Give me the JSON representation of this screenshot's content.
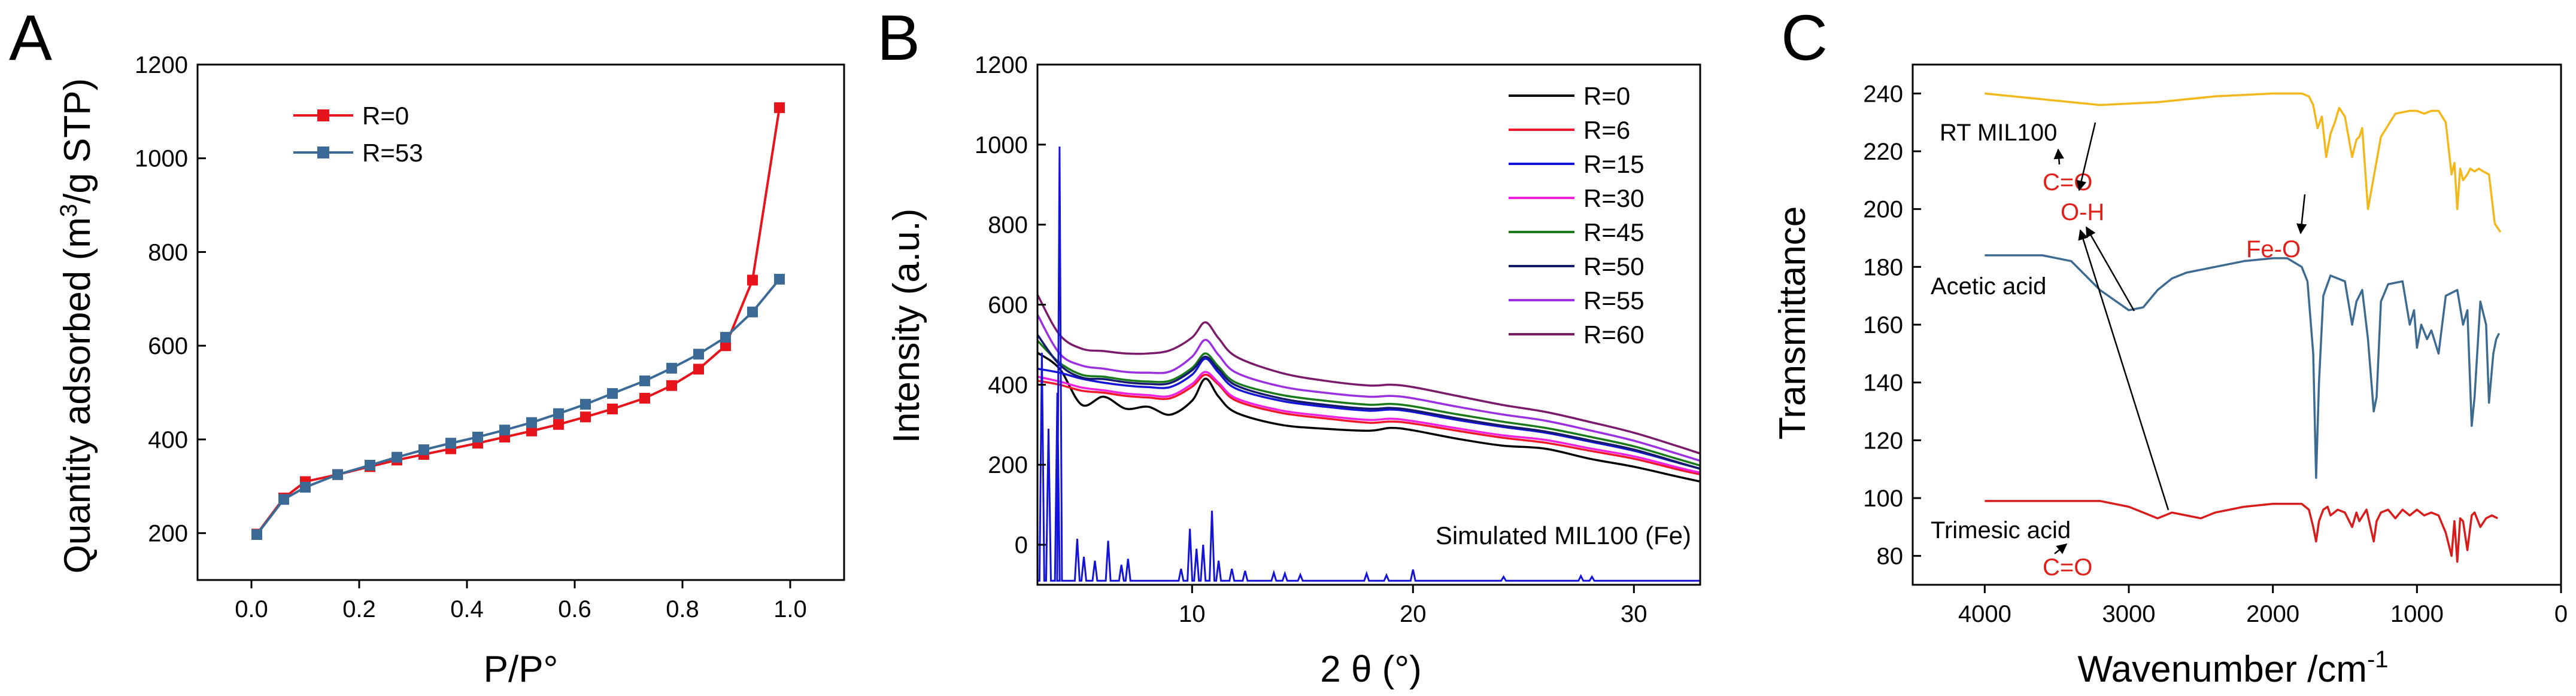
{
  "chart_data": [
    {
      "panel": "A",
      "type": "line",
      "title": "",
      "xlabel": "P/P°",
      "ylabel_main": "Quantity adsorbed (m",
      "ylabel_sup": "3",
      "ylabel_end": "/g STP)",
      "xlim": [
        -0.1,
        1.1
      ],
      "ylim": [
        100,
        1200
      ],
      "xticks": [
        0.0,
        0.2,
        0.4,
        0.6,
        0.8,
        1.0
      ],
      "xtick_labels": [
        "0.0",
        "0.2",
        "0.4",
        "0.6",
        "0.8",
        "1.0"
      ],
      "yticks": [
        200,
        400,
        600,
        800,
        1000,
        1200
      ],
      "ytick_labels": [
        "200",
        "400",
        "600",
        "800",
        "1000",
        "1200"
      ],
      "legend_position": "top-left",
      "series": [
        {
          "name": "R=0",
          "color": "#e8141c",
          "marker": "square",
          "x": [
            0.01,
            0.06,
            0.1,
            0.16,
            0.22,
            0.27,
            0.32,
            0.37,
            0.42,
            0.47,
            0.52,
            0.57,
            0.62,
            0.67,
            0.73,
            0.78,
            0.83,
            0.88,
            0.93,
            0.98
          ],
          "y": [
            198,
            275,
            310,
            325,
            342,
            356,
            368,
            380,
            392,
            405,
            418,
            432,
            448,
            465,
            488,
            515,
            550,
            600,
            740,
            1108
          ]
        },
        {
          "name": "R=53",
          "color": "#3c6a96",
          "marker": "square",
          "x": [
            0.01,
            0.06,
            0.1,
            0.16,
            0.22,
            0.27,
            0.32,
            0.37,
            0.42,
            0.47,
            0.52,
            0.57,
            0.62,
            0.67,
            0.73,
            0.78,
            0.83,
            0.88,
            0.93,
            0.98
          ],
          "y": [
            197,
            272,
            298,
            325,
            345,
            362,
            378,
            392,
            405,
            420,
            436,
            455,
            475,
            498,
            525,
            552,
            582,
            618,
            672,
            742
          ]
        }
      ]
    },
    {
      "panel": "B",
      "type": "line",
      "title": "",
      "xlabel": "2 θ (°)",
      "ylabel": "Intensity (a.u.)",
      "xlim": [
        3,
        33
      ],
      "ylim": [
        -100,
        1200
      ],
      "xticks": [
        10,
        20,
        30
      ],
      "xtick_labels": [
        "10",
        "20",
        "30"
      ],
      "yticks": [
        0,
        200,
        400,
        600,
        800,
        1000,
        1200
      ],
      "ytick_labels": [
        "0",
        "200",
        "400",
        "600",
        "800",
        "1000",
        "1200"
      ],
      "legend_position": "top-right",
      "series": [
        {
          "name": "R=0",
          "color": "#000000",
          "x": [
            3,
            4,
            5,
            6,
            7,
            8,
            9,
            10,
            10.6,
            11.2,
            12,
            14,
            16,
            18,
            19,
            20,
            22,
            24,
            26,
            28,
            30,
            32,
            33
          ],
          "y": [
            480,
            440,
            350,
            370,
            340,
            345,
            325,
            360,
            415,
            370,
            330,
            300,
            290,
            285,
            292,
            286,
            265,
            248,
            240,
            215,
            195,
            170,
            158
          ]
        },
        {
          "name": "R=6",
          "color": "#f2182c",
          "x": [
            3,
            4,
            5,
            6,
            7,
            8,
            9,
            10,
            10.6,
            11.2,
            12,
            14,
            16,
            18,
            19,
            20,
            22,
            24,
            26,
            28,
            30,
            32,
            33
          ],
          "y": [
            410,
            400,
            385,
            380,
            372,
            368,
            366,
            395,
            425,
            400,
            360,
            330,
            316,
            305,
            308,
            303,
            285,
            268,
            255,
            235,
            215,
            188,
            176
          ]
        },
        {
          "name": "R=15",
          "color": "#1414d8",
          "x": [
            3,
            4,
            5,
            6,
            7,
            8,
            9,
            10,
            10.6,
            11.2,
            12,
            14,
            16,
            18,
            19,
            20,
            22,
            24,
            26,
            28,
            30,
            32,
            33
          ],
          "y": [
            440,
            430,
            415,
            405,
            398,
            394,
            394,
            425,
            465,
            430,
            390,
            360,
            345,
            335,
            338,
            332,
            312,
            295,
            280,
            258,
            235,
            205,
            190
          ]
        },
        {
          "name": "R=30",
          "color": "#f020e0",
          "x": [
            3,
            4,
            5,
            6,
            7,
            8,
            9,
            10,
            10.6,
            11.2,
            12,
            14,
            16,
            18,
            19,
            20,
            22,
            24,
            26,
            28,
            30,
            32,
            33
          ],
          "y": [
            420,
            408,
            393,
            386,
            378,
            374,
            372,
            402,
            432,
            405,
            366,
            336,
            322,
            312,
            315,
            309,
            291,
            274,
            262,
            241,
            221,
            193,
            180
          ]
        },
        {
          "name": "R=45",
          "color": "#1a7a1a",
          "x": [
            3,
            4,
            5,
            6,
            7,
            8,
            9,
            10,
            10.6,
            11.2,
            12,
            14,
            16,
            18,
            19,
            20,
            22,
            24,
            26,
            28,
            30,
            32,
            33
          ],
          "y": [
            510,
            455,
            425,
            420,
            412,
            408,
            410,
            442,
            478,
            445,
            405,
            375,
            360,
            350,
            352,
            346,
            326,
            308,
            292,
            270,
            246,
            214,
            198
          ]
        },
        {
          "name": "R=50",
          "color": "#161a6e",
          "x": [
            3,
            4,
            5,
            6,
            7,
            8,
            9,
            10,
            10.6,
            11.2,
            12,
            14,
            16,
            18,
            19,
            20,
            22,
            24,
            26,
            28,
            30,
            32,
            33
          ],
          "y": [
            525,
            450,
            418,
            414,
            406,
            402,
            404,
            436,
            470,
            438,
            398,
            366,
            350,
            340,
            342,
            336,
            316,
            298,
            283,
            261,
            238,
            206,
            190
          ]
        },
        {
          "name": "R=55",
          "color": "#9a30e0",
          "x": [
            3,
            4,
            5,
            6,
            7,
            8,
            9,
            10,
            10.6,
            11.2,
            12,
            14,
            16,
            18,
            19,
            20,
            22,
            24,
            26,
            28,
            30,
            32,
            33
          ],
          "y": [
            575,
            478,
            448,
            440,
            432,
            430,
            433,
            470,
            512,
            474,
            430,
            396,
            380,
            370,
            372,
            366,
            345,
            326,
            310,
            286,
            260,
            227,
            210
          ]
        },
        {
          "name": "R=60",
          "color": "#7a1a6a",
          "x": [
            3,
            4,
            5,
            6,
            7,
            8,
            9,
            10,
            10.6,
            11.2,
            12,
            14,
            16,
            18,
            19,
            20,
            22,
            24,
            26,
            28,
            30,
            32,
            33
          ],
          "y": [
            625,
            525,
            490,
            484,
            478,
            478,
            486,
            518,
            556,
            516,
            470,
            430,
            410,
            398,
            400,
            394,
            372,
            350,
            332,
            307,
            280,
            246,
            228
          ]
        }
      ],
      "simulated": {
        "name": "Simulated MIL100 (Fe)",
        "color": "#1414d8",
        "baseline": -90,
        "peaks": [
          {
            "x": 3.2,
            "y": 480
          },
          {
            "x": 3.5,
            "y": 290
          },
          {
            "x": 3.9,
            "y": 380
          },
          {
            "x": 4.0,
            "y": 995
          },
          {
            "x": 4.8,
            "y": 15
          },
          {
            "x": 5.1,
            "y": -30
          },
          {
            "x": 5.6,
            "y": -40
          },
          {
            "x": 6.2,
            "y": 10
          },
          {
            "x": 6.8,
            "y": -50
          },
          {
            "x": 7.1,
            "y": -35
          },
          {
            "x": 9.5,
            "y": -60
          },
          {
            "x": 9.9,
            "y": 40
          },
          {
            "x": 10.2,
            "y": -10
          },
          {
            "x": 10.5,
            "y": 0
          },
          {
            "x": 10.9,
            "y": 85
          },
          {
            "x": 11.2,
            "y": -40
          },
          {
            "x": 11.8,
            "y": -60
          },
          {
            "x": 12.4,
            "y": -65
          },
          {
            "x": 13.7,
            "y": -70
          },
          {
            "x": 14.2,
            "y": -72
          },
          {
            "x": 14.9,
            "y": -75
          },
          {
            "x": 17.9,
            "y": -72
          },
          {
            "x": 18.8,
            "y": -76
          },
          {
            "x": 20.0,
            "y": -62
          },
          {
            "x": 24.1,
            "y": -80
          },
          {
            "x": 27.6,
            "y": -78
          },
          {
            "x": 28.1,
            "y": -80
          }
        ]
      }
    },
    {
      "panel": "C",
      "type": "line",
      "title": "",
      "xlabel_main": "Wavenumber /cm",
      "xlabel_sup": "-1",
      "ylabel": "Transmittance",
      "xlim": [
        4500,
        0
      ],
      "ylim": [
        70,
        250
      ],
      "xticks": [
        4000,
        3000,
        2000,
        1000,
        0
      ],
      "xtick_labels": [
        "4000",
        "3000",
        "2000",
        "1000",
        "0"
      ],
      "yticks": [
        80,
        100,
        120,
        140,
        160,
        180,
        200,
        220,
        240
      ],
      "ytick_labels": [
        "80",
        "100",
        "120",
        "140",
        "160",
        "180",
        "200",
        "220",
        "240"
      ],
      "series": [
        {
          "name": "RT MIL100",
          "color": "#f2b71a",
          "x": [
            4000,
            3600,
            3200,
            2800,
            2400,
            2000,
            1800,
            1750,
            1720,
            1690,
            1660,
            1630,
            1600,
            1570,
            1540,
            1500,
            1450,
            1420,
            1400,
            1380,
            1340,
            1250,
            1150,
            1050,
            1000,
            950,
            900,
            850,
            800,
            760,
            740,
            720,
            700,
            680,
            650,
            630,
            600,
            570,
            540,
            500,
            460,
            420
          ],
          "y": [
            240,
            238,
            236,
            237,
            239,
            240,
            240,
            239,
            236,
            228,
            232,
            218,
            226,
            230,
            235,
            232,
            218,
            224,
            225,
            228,
            200,
            225,
            233,
            234,
            234,
            233,
            234,
            234,
            230,
            212,
            216,
            200,
            214,
            210,
            212,
            214,
            213,
            214,
            213,
            212,
            195,
            192
          ]
        },
        {
          "name": "Acetic acid",
          "color": "#3c6a90",
          "x": [
            4000,
            3600,
            3400,
            3200,
            3000,
            2900,
            2800,
            2700,
            2600,
            2400,
            2200,
            2000,
            1900,
            1800,
            1760,
            1720,
            1700,
            1680,
            1650,
            1600,
            1500,
            1450,
            1420,
            1400,
            1380,
            1340,
            1300,
            1280,
            1250,
            1200,
            1100,
            1050,
            1020,
            1000,
            970,
            930,
            900,
            850,
            800,
            720,
            680,
            650,
            620,
            600,
            560,
            520,
            500,
            470,
            450,
            430
          ],
          "y": [
            184,
            184,
            182,
            172,
            165,
            166,
            172,
            176,
            178,
            180,
            182,
            183,
            183,
            180,
            175,
            150,
            107,
            140,
            170,
            177,
            175,
            160,
            168,
            170,
            172,
            155,
            130,
            135,
            168,
            174,
            175,
            160,
            165,
            152,
            160,
            155,
            158,
            150,
            170,
            172,
            160,
            165,
            125,
            135,
            168,
            160,
            133,
            150,
            155,
            157
          ]
        },
        {
          "name": "Trimesic acid",
          "color": "#d81c1c",
          "x": [
            4000,
            3500,
            3200,
            3000,
            2900,
            2800,
            2700,
            2600,
            2500,
            2400,
            2200,
            2000,
            1800,
            1750,
            1720,
            1700,
            1680,
            1650,
            1620,
            1600,
            1550,
            1500,
            1450,
            1420,
            1400,
            1350,
            1300,
            1280,
            1250,
            1200,
            1150,
            1100,
            1050,
            1000,
            950,
            900,
            850,
            800,
            760,
            740,
            720,
            700,
            680,
            650,
            620,
            600,
            560,
            520,
            480,
            440
          ],
          "y": [
            99,
            99,
            99,
            97,
            95,
            93,
            95,
            94,
            93,
            95,
            97,
            98,
            98,
            96,
            90,
            85,
            92,
            96,
            97,
            94,
            96,
            95,
            90,
            95,
            92,
            96,
            85,
            92,
            95,
            96,
            93,
            96,
            94,
            96,
            94,
            95,
            94,
            88,
            80,
            92,
            78,
            93,
            92,
            82,
            94,
            95,
            90,
            93,
            94,
            93
          ]
        }
      ],
      "annotations": {
        "oh": "O-H",
        "co_top": "C=O",
        "feo": "Fe-O",
        "co_bottom": "C=O"
      }
    }
  ]
}
